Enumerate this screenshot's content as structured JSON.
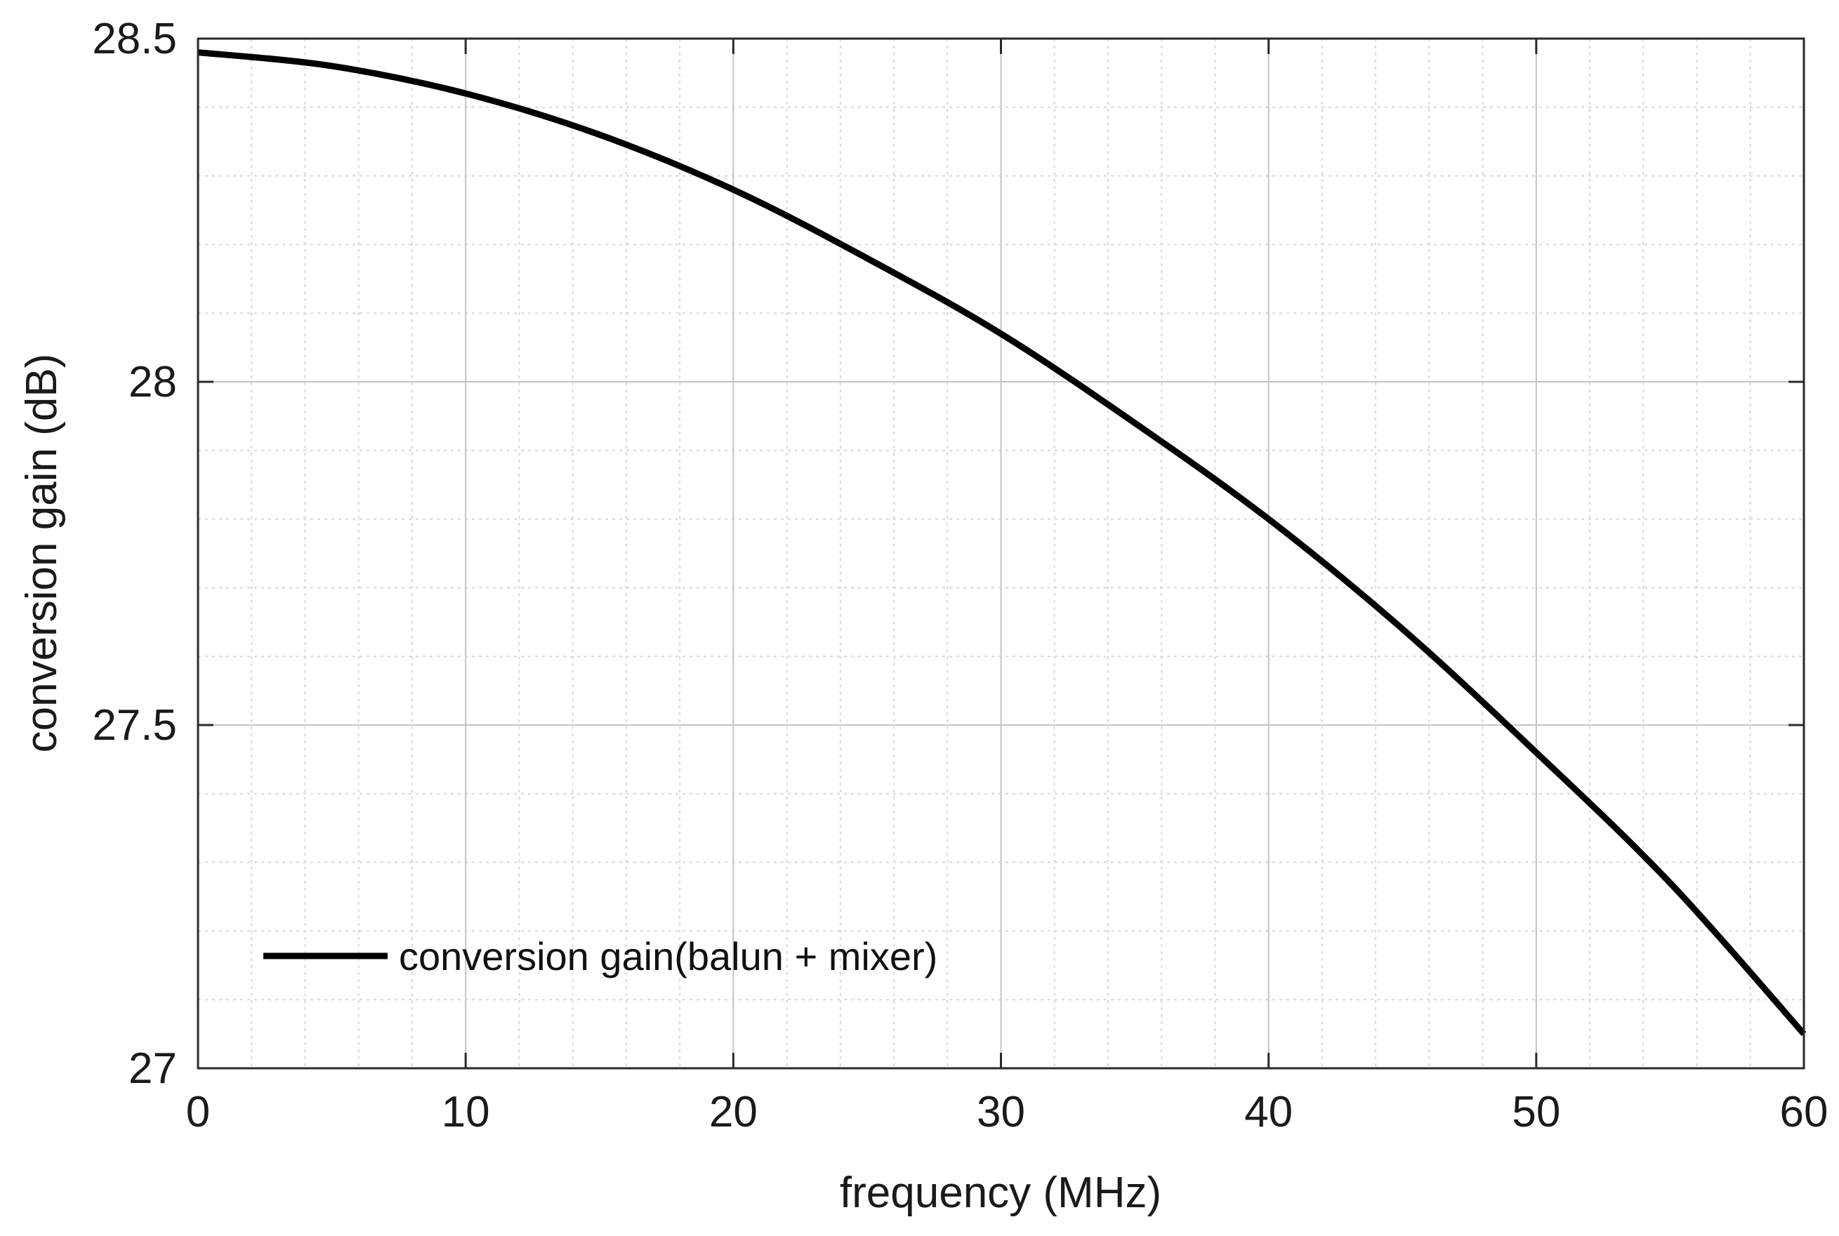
{
  "chart_data": {
    "type": "line",
    "title": "",
    "xlabel": "frequency (MHz)",
    "ylabel": "conversion gain (dB)",
    "xlim": [
      0,
      60
    ],
    "ylim": [
      27,
      28.5
    ],
    "xticks": [
      0,
      10,
      20,
      30,
      40,
      50,
      60
    ],
    "xtick_labels": [
      "0",
      "10",
      "20",
      "30",
      "40",
      "50",
      "60"
    ],
    "yticks": [
      27,
      27.5,
      28,
      28.5
    ],
    "ytick_labels": [
      "27",
      "27.5",
      "28",
      "28.5"
    ],
    "x_minor_step": 2,
    "y_minor_step": 0.1,
    "grid": true,
    "legend_position": "lower-left",
    "series": [
      {
        "name": "conversion gain(balun + mixer)",
        "color": "#000000",
        "x": [
          0,
          5,
          10,
          15,
          20,
          25,
          30,
          35,
          40,
          45,
          50,
          55,
          60
        ],
        "values": [
          28.48,
          28.46,
          28.42,
          28.36,
          28.28,
          28.18,
          28.07,
          27.94,
          27.8,
          27.64,
          27.46,
          27.27,
          27.05
        ]
      }
    ]
  }
}
